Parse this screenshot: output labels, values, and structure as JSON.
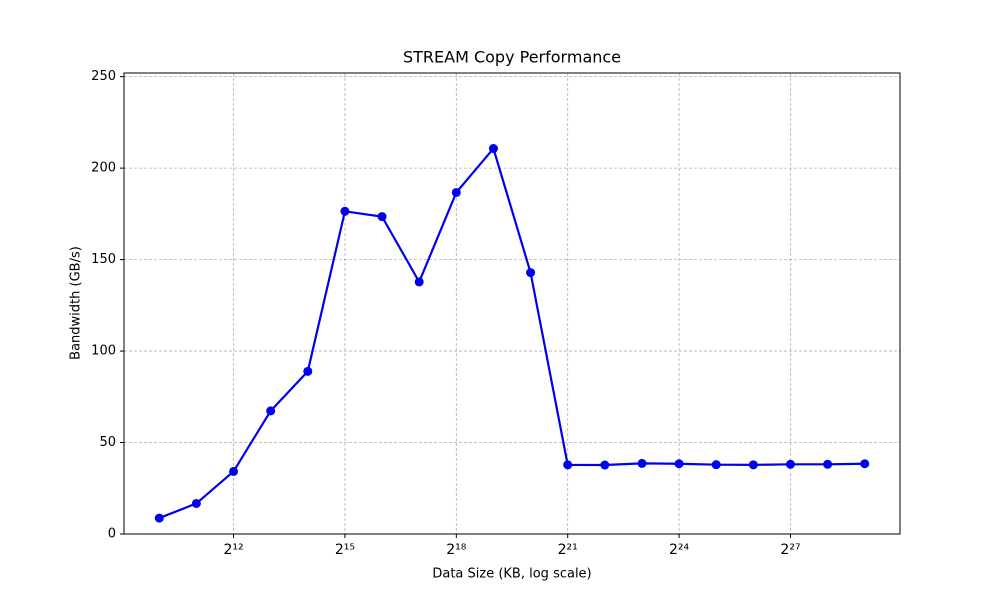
{
  "chart_data": {
    "type": "line",
    "title": "STREAM Copy Performance",
    "x_label": "Data Size (KB, log scale)",
    "y_label": "Bandwidth (GB/s)",
    "x": [
      1024,
      2048,
      4096,
      8192,
      16384,
      32768,
      65536,
      131072,
      262144,
      524288,
      1048576,
      2097152,
      4194304,
      8388608,
      16777216,
      33554432,
      67108864,
      134217728,
      268435456,
      536870912
    ],
    "series": [
      {
        "name": "Copy",
        "color": "#0000ee",
        "values": [
          8.7,
          16.7,
          34.2,
          67.3,
          88.9,
          176.4,
          173.5,
          137.8,
          186.7,
          210.7,
          142.9,
          37.8,
          37.7,
          38.6,
          38.4,
          37.9,
          37.8,
          38.1,
          38.1,
          38.4
        ]
      }
    ],
    "x_log_base": 2,
    "xlim": [
      530,
      1037000000
    ],
    "xticks": [
      {
        "value": 4096,
        "label": "2¹²"
      },
      {
        "value": 32768,
        "label": "2¹⁵"
      },
      {
        "value": 262144,
        "label": "2¹⁸"
      },
      {
        "value": 2097152,
        "label": "2²¹"
      },
      {
        "value": 16777216,
        "label": "2²⁴"
      },
      {
        "value": 134217728,
        "label": "2²⁷"
      }
    ],
    "ylim": [
      0,
      252
    ],
    "yticks": [
      0,
      50,
      100,
      150,
      200,
      250
    ],
    "grid": true
  }
}
